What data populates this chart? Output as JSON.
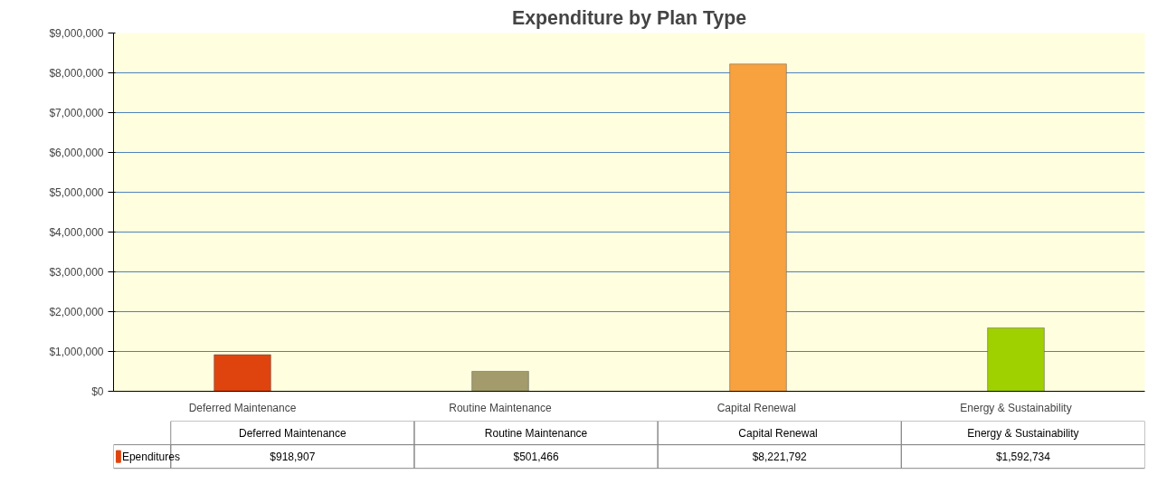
{
  "chart_data": {
    "type": "bar",
    "title": "Expenditure by Plan Type",
    "categories": [
      "Deferred Maintenance",
      "Routine Maintenance",
      "Capital  Renewal",
      "Energy & Sustainability"
    ],
    "series": [
      {
        "name": "Ependitures",
        "color": "#e0440e",
        "colors": [
          "#e0440e",
          "#a39b6b",
          "#f7a23e",
          "#9fd000"
        ],
        "values": [
          918907,
          501466,
          8221792,
          1592734
        ],
        "value_labels": [
          "$918,907",
          "$501,466",
          "$8,221,792",
          "$1,592,734"
        ]
      }
    ],
    "ylim": [
      0,
      9000000
    ],
    "yticks": [
      {
        "value": 0,
        "label": "$0"
      },
      {
        "value": 1000000,
        "label": "$1,000,000"
      },
      {
        "value": 2000000,
        "label": "$2,000,000"
      },
      {
        "value": 3000000,
        "label": "$3,000,000"
      },
      {
        "value": 4000000,
        "label": "$4,000,000"
      },
      {
        "value": 5000000,
        "label": "$5,000,000"
      },
      {
        "value": 6000000,
        "label": "$6,000,000"
      },
      {
        "value": 7000000,
        "label": "$7,000,000"
      },
      {
        "value": 8000000,
        "label": "$8,000,000"
      },
      {
        "value": 9000000,
        "label": "$9,000,000"
      }
    ],
    "grid": "y",
    "legend": "bottom left"
  }
}
